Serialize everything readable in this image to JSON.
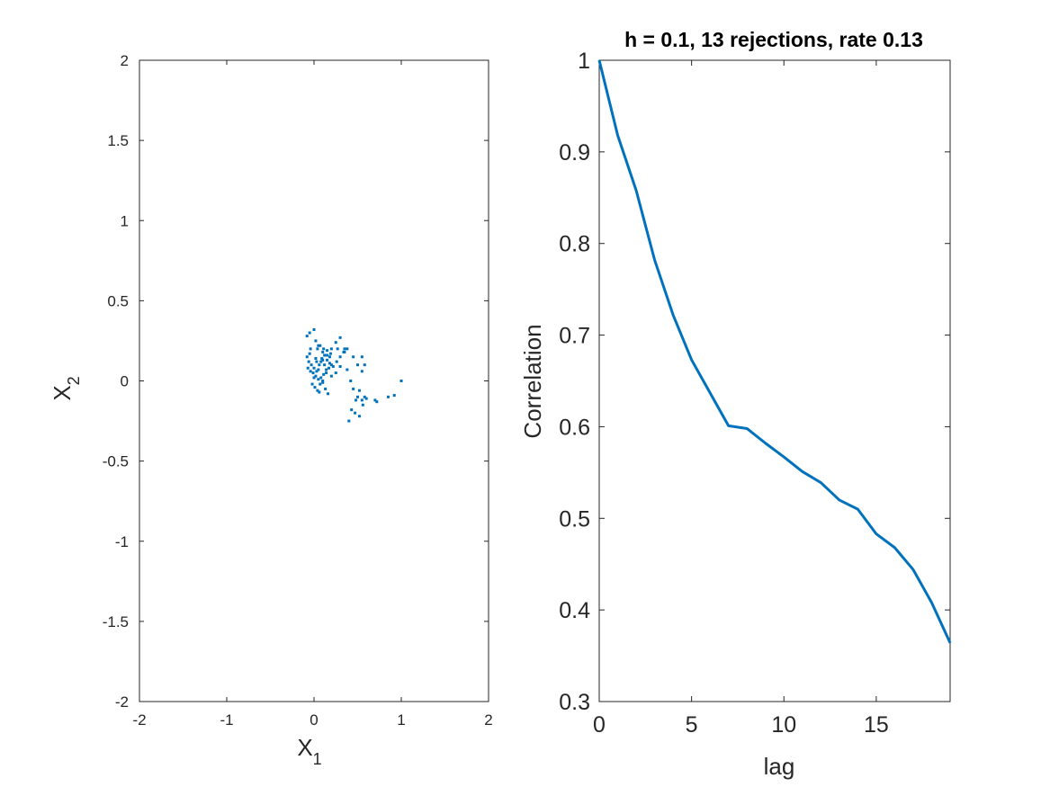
{
  "colors": {
    "series": "#0072BD",
    "axis": "#262626",
    "background": "#ffffff"
  },
  "chart_data": [
    {
      "type": "scatter",
      "title": "",
      "xlabel_main": "X",
      "xlabel_sub": "1",
      "ylabel_main": "X",
      "ylabel_sub": "2",
      "xlim": [
        -2,
        2
      ],
      "ylim": [
        -2,
        2
      ],
      "xticks": [
        "-2",
        "-1",
        "0",
        "1",
        "2"
      ],
      "yticks": [
        "-2",
        "-1.5",
        "-1",
        "-0.5",
        "0",
        "0.5",
        "1",
        "1.5",
        "2"
      ],
      "grid": false,
      "x": [
        -0.08,
        -0.05,
        0.0,
        0.02,
        -0.04,
        0.05,
        0.1,
        0.15,
        0.2,
        0.25,
        0.3,
        0.35,
        0.02,
        0.08,
        0.12,
        -0.08,
        -0.06,
        -0.03,
        0.0,
        0.03,
        0.06,
        0.09,
        0.12,
        0.15,
        0.18,
        0.22,
        0.26,
        0.3,
        0.34,
        0.38,
        -0.07,
        -0.04,
        -0.01,
        0.02,
        0.05,
        0.08,
        0.11,
        0.14,
        0.17,
        0.2,
        -0.02,
        0.01,
        0.04,
        0.07,
        0.1,
        0.13,
        0.16,
        0.0,
        0.05,
        0.1,
        0.15,
        0.2,
        0.25,
        0.3,
        0.06,
        0.1,
        0.14,
        0.18,
        0.04,
        0.07,
        0.38,
        0.42,
        0.45,
        0.48,
        0.5,
        0.52,
        0.55,
        0.58,
        0.6,
        0.55,
        0.5,
        0.45,
        0.55,
        0.58,
        0.7,
        0.72,
        0.85,
        0.92,
        1.0,
        0.4,
        0.43,
        0.47,
        0.52,
        0.56,
        -0.05,
        0.03,
        0.11,
        0.19,
        0.27,
        0.35
      ],
      "y": [
        0.28,
        0.3,
        0.32,
        0.25,
        0.2,
        0.22,
        0.18,
        0.16,
        0.2,
        0.24,
        0.27,
        0.18,
        0.14,
        0.12,
        0.1,
        0.15,
        0.12,
        0.1,
        0.08,
        0.06,
        0.1,
        0.14,
        0.16,
        0.13,
        0.11,
        0.09,
        0.12,
        0.15,
        0.18,
        0.2,
        0.08,
        0.06,
        0.05,
        0.03,
        0.01,
        0.02,
        0.04,
        0.07,
        0.08,
        0.1,
        -0.02,
        -0.04,
        -0.06,
        -0.02,
        0.0,
        -0.05,
        -0.08,
        0.02,
        0.07,
        0.13,
        0.19,
        0.03,
        0.05,
        0.09,
        -0.07,
        -0.01,
        0.05,
        0.15,
        0.2,
        0.22,
        0.07,
        0.0,
        -0.05,
        -0.12,
        -0.1,
        -0.06,
        -0.12,
        -0.1,
        -0.11,
        0.06,
        0.1,
        0.15,
        0.15,
        0.1,
        -0.12,
        -0.13,
        -0.1,
        -0.09,
        0.0,
        -0.25,
        -0.18,
        -0.2,
        -0.22,
        -0.15,
        0.17,
        0.12,
        0.2,
        0.17,
        0.2,
        0.2
      ]
    },
    {
      "type": "line",
      "title": "h = 0.1, 13 rejections, rate 0.13",
      "xlabel": "lag",
      "ylabel": "Correlation",
      "xlim": [
        0,
        19
      ],
      "ylim": [
        0.3,
        1
      ],
      "xticks": [
        "0",
        "5",
        "10",
        "15"
      ],
      "yticks": [
        "0.3",
        "0.4",
        "0.5",
        "0.6",
        "0.7",
        "0.8",
        "0.9",
        "1"
      ],
      "grid": false,
      "x": [
        0,
        1,
        2,
        3,
        4,
        5,
        6,
        7,
        8,
        9,
        10,
        11,
        12,
        13,
        14,
        15,
        16,
        17,
        18,
        19
      ],
      "y": [
        1.0,
        0.918,
        0.858,
        0.782,
        0.722,
        0.673,
        0.637,
        0.601,
        0.598,
        0.582,
        0.567,
        0.551,
        0.539,
        0.52,
        0.51,
        0.483,
        0.468,
        0.444,
        0.408,
        0.364
      ]
    }
  ]
}
